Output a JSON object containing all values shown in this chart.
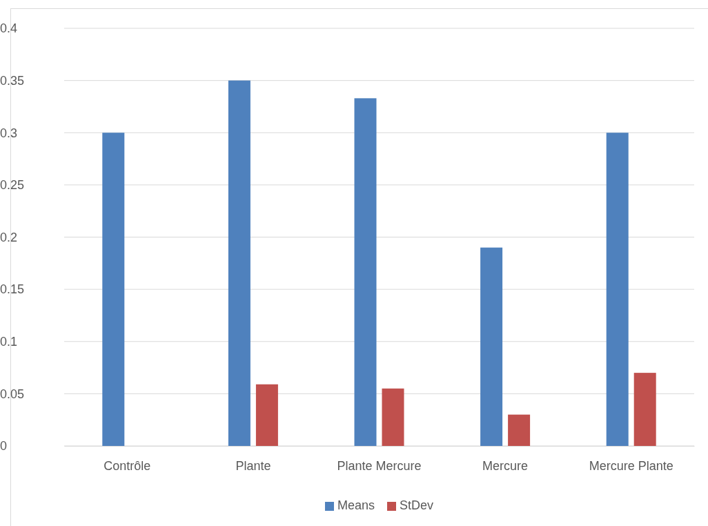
{
  "chart_data": {
    "type": "bar",
    "categories": [
      "Contrôle",
      "Plante",
      "Plante Mercure",
      "Mercure",
      "Mercure Plante"
    ],
    "series": [
      {
        "name": "Means",
        "color": "#4f81bd",
        "values": [
          0.3,
          0.35,
          0.333,
          0.19,
          0.3
        ]
      },
      {
        "name": "StDev",
        "color": "#c0504d",
        "values": [
          0,
          0.059,
          0.055,
          0.03,
          0.07
        ]
      }
    ],
    "ylim": [
      0,
      0.4
    ],
    "yticks": [
      0,
      0.05,
      0.1,
      0.15,
      0.2,
      0.25,
      0.3,
      0.35,
      0.4
    ],
    "grid": "y",
    "legend": "bottom"
  }
}
